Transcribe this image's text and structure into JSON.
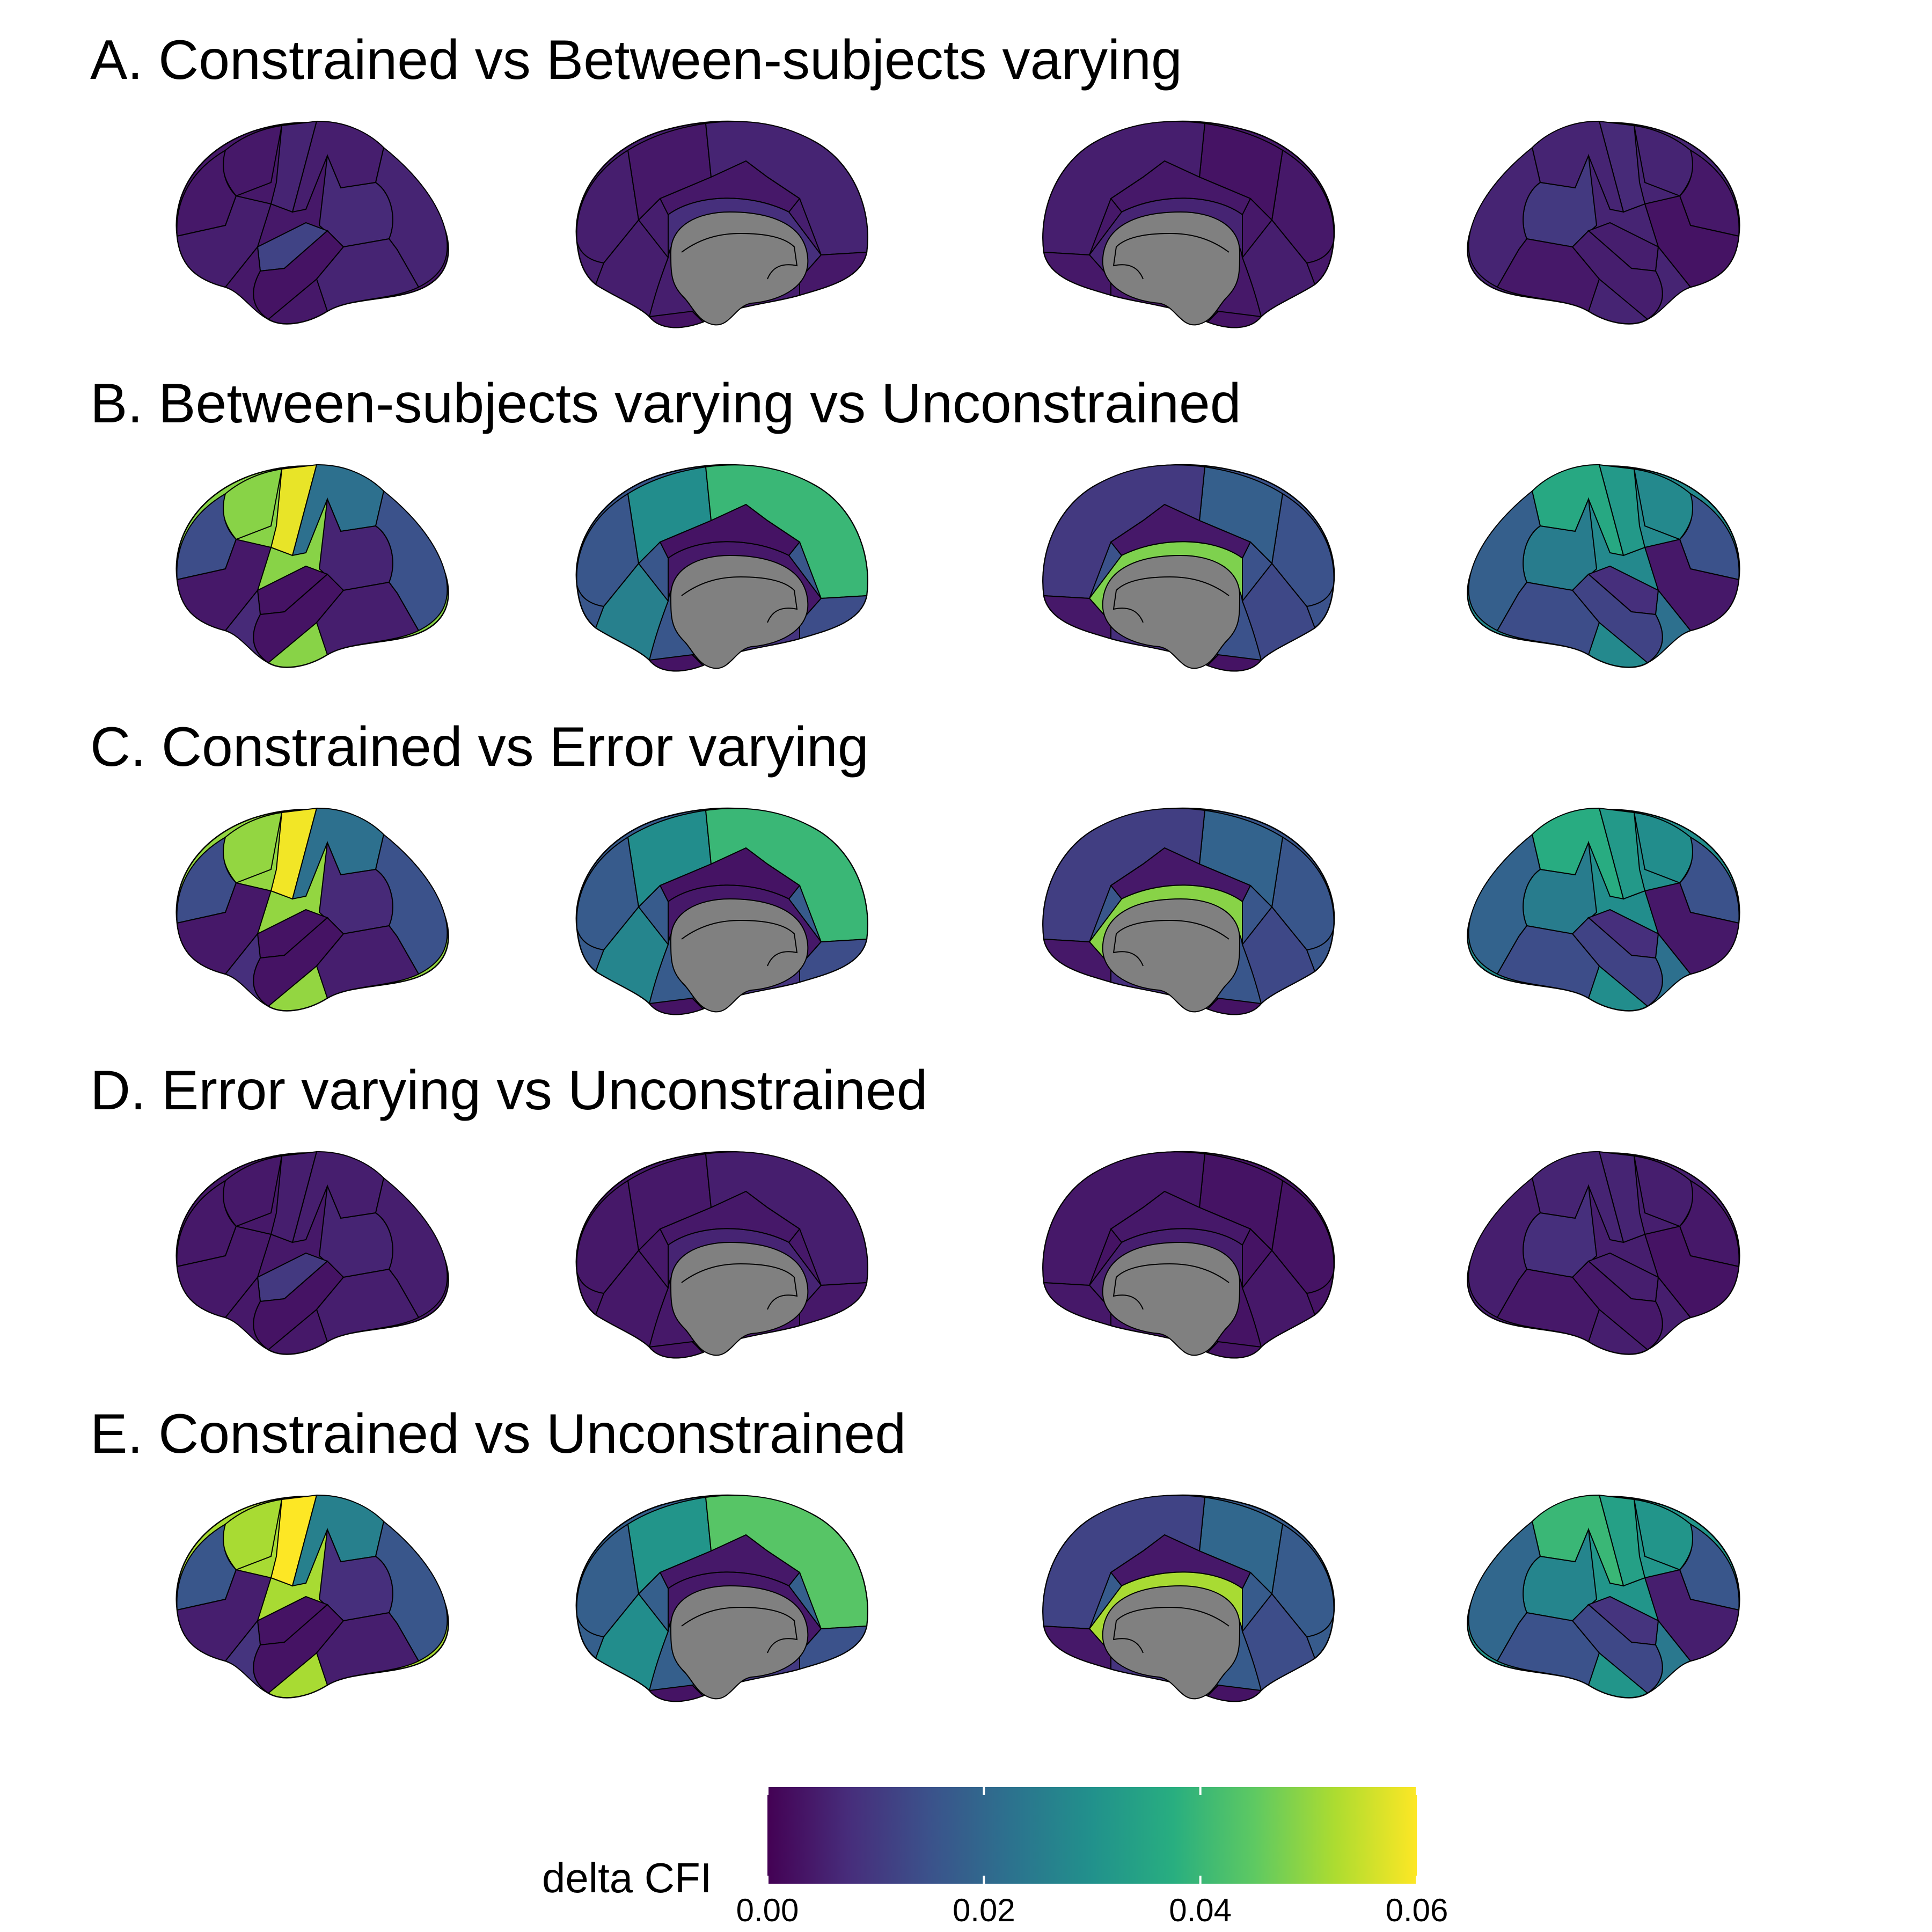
{
  "colors": {
    "viridis": [
      "#440154",
      "#3b528b",
      "#21918c",
      "#5ec962",
      "#fde725"
    ],
    "outline": "#000000",
    "midline": "#808080"
  },
  "panels": [
    {
      "title": "A. Constrained vs Between-subjects varying",
      "views": [
        {
          "view": "left-lateral",
          "regions": [
            0.004,
            0.006,
            0.005,
            0.007,
            0.012,
            0.004,
            0.006,
            0.005,
            0.003,
            0.006,
            0.004
          ]
        },
        {
          "view": "left-medial",
          "regions": [
            0.005,
            0.004,
            0.006,
            0.004,
            0.008,
            0.005,
            0.004,
            0.003,
            0.005
          ]
        },
        {
          "view": "right-medial",
          "regions": [
            0.004,
            0.003,
            0.005,
            0.004,
            0.006,
            0.005,
            0.004,
            0.003,
            0.004
          ]
        },
        {
          "view": "right-lateral",
          "regions": [
            0.006,
            0.007,
            0.006,
            0.01,
            0.005,
            0.004,
            0.006,
            0.003,
            0.005,
            0.004,
            0.006
          ]
        }
      ]
    },
    {
      "title": "B. Between-subjects varying vs Unconstrained",
      "views": [
        {
          "view": "left-lateral",
          "regions": [
            0.049,
            0.058,
            0.022,
            0.006,
            0.003,
            0.014,
            0.015,
            0.004,
            0.003,
            0.005,
            0.007
          ]
        },
        {
          "view": "left-medial",
          "regions": [
            0.016,
            0.029,
            0.04,
            0.003,
            0.004,
            0.026,
            0.014,
            0.003,
            0.009
          ]
        },
        {
          "view": "right-medial",
          "regions": [
            0.015,
            0.018,
            0.01,
            0.004,
            0.048,
            0.013,
            0.004,
            0.003,
            0.008
          ]
        },
        {
          "view": "right-lateral",
          "regions": [
            0.028,
            0.032,
            0.036,
            0.025,
            0.008,
            0.015,
            0.018,
            0.004,
            0.012,
            0.014,
            0.022
          ]
        }
      ]
    },
    {
      "title": "C. Constrained vs Error varying",
      "views": [
        {
          "view": "left-lateral",
          "regions": [
            0.05,
            0.059,
            0.022,
            0.007,
            0.003,
            0.014,
            0.015,
            0.004,
            0.003,
            0.005,
            0.008
          ]
        },
        {
          "view": "left-medial",
          "regions": [
            0.017,
            0.029,
            0.04,
            0.003,
            0.004,
            0.027,
            0.014,
            0.003,
            0.009
          ]
        },
        {
          "view": "right-medial",
          "regions": [
            0.016,
            0.019,
            0.011,
            0.004,
            0.049,
            0.013,
            0.004,
            0.003,
            0.008
          ]
        },
        {
          "view": "right-lateral",
          "regions": [
            0.029,
            0.032,
            0.037,
            0.025,
            0.008,
            0.015,
            0.019,
            0.004,
            0.012,
            0.014,
            0.022
          ]
        }
      ]
    },
    {
      "title": "D. Error varying vs Unconstrained",
      "views": [
        {
          "view": "left-lateral",
          "regions": [
            0.004,
            0.005,
            0.005,
            0.006,
            0.01,
            0.004,
            0.005,
            0.004,
            0.003,
            0.005,
            0.004
          ]
        },
        {
          "view": "left-medial",
          "regions": [
            0.004,
            0.004,
            0.005,
            0.004,
            0.006,
            0.004,
            0.004,
            0.003,
            0.004
          ]
        },
        {
          "view": "right-medial",
          "regions": [
            0.003,
            0.003,
            0.004,
            0.004,
            0.005,
            0.004,
            0.004,
            0.003,
            0.004
          ]
        },
        {
          "view": "right-lateral",
          "regions": [
            0.005,
            0.006,
            0.006,
            0.008,
            0.005,
            0.004,
            0.005,
            0.003,
            0.004,
            0.004,
            0.005
          ]
        }
      ]
    },
    {
      "title": "E. Constrained vs Unconstrained",
      "views": [
        {
          "view": "left-lateral",
          "regions": [
            0.052,
            0.061,
            0.026,
            0.008,
            0.003,
            0.016,
            0.016,
            0.005,
            0.003,
            0.005,
            0.009
          ]
        },
        {
          "view": "left-medial",
          "regions": [
            0.018,
            0.031,
            0.044,
            0.004,
            0.004,
            0.029,
            0.015,
            0.003,
            0.01
          ]
        },
        {
          "view": "right-medial",
          "regions": [
            0.017,
            0.02,
            0.012,
            0.004,
            0.052,
            0.014,
            0.004,
            0.003,
            0.009
          ]
        },
        {
          "view": "right-lateral",
          "regions": [
            0.031,
            0.034,
            0.04,
            0.027,
            0.009,
            0.016,
            0.02,
            0.005,
            0.013,
            0.015,
            0.024
          ]
        }
      ]
    }
  ],
  "legend": {
    "title": "delta CFI",
    "min": 0.0,
    "max": 0.06,
    "ticks": [
      "0.00",
      "0.02",
      "0.04",
      "0.06"
    ]
  }
}
